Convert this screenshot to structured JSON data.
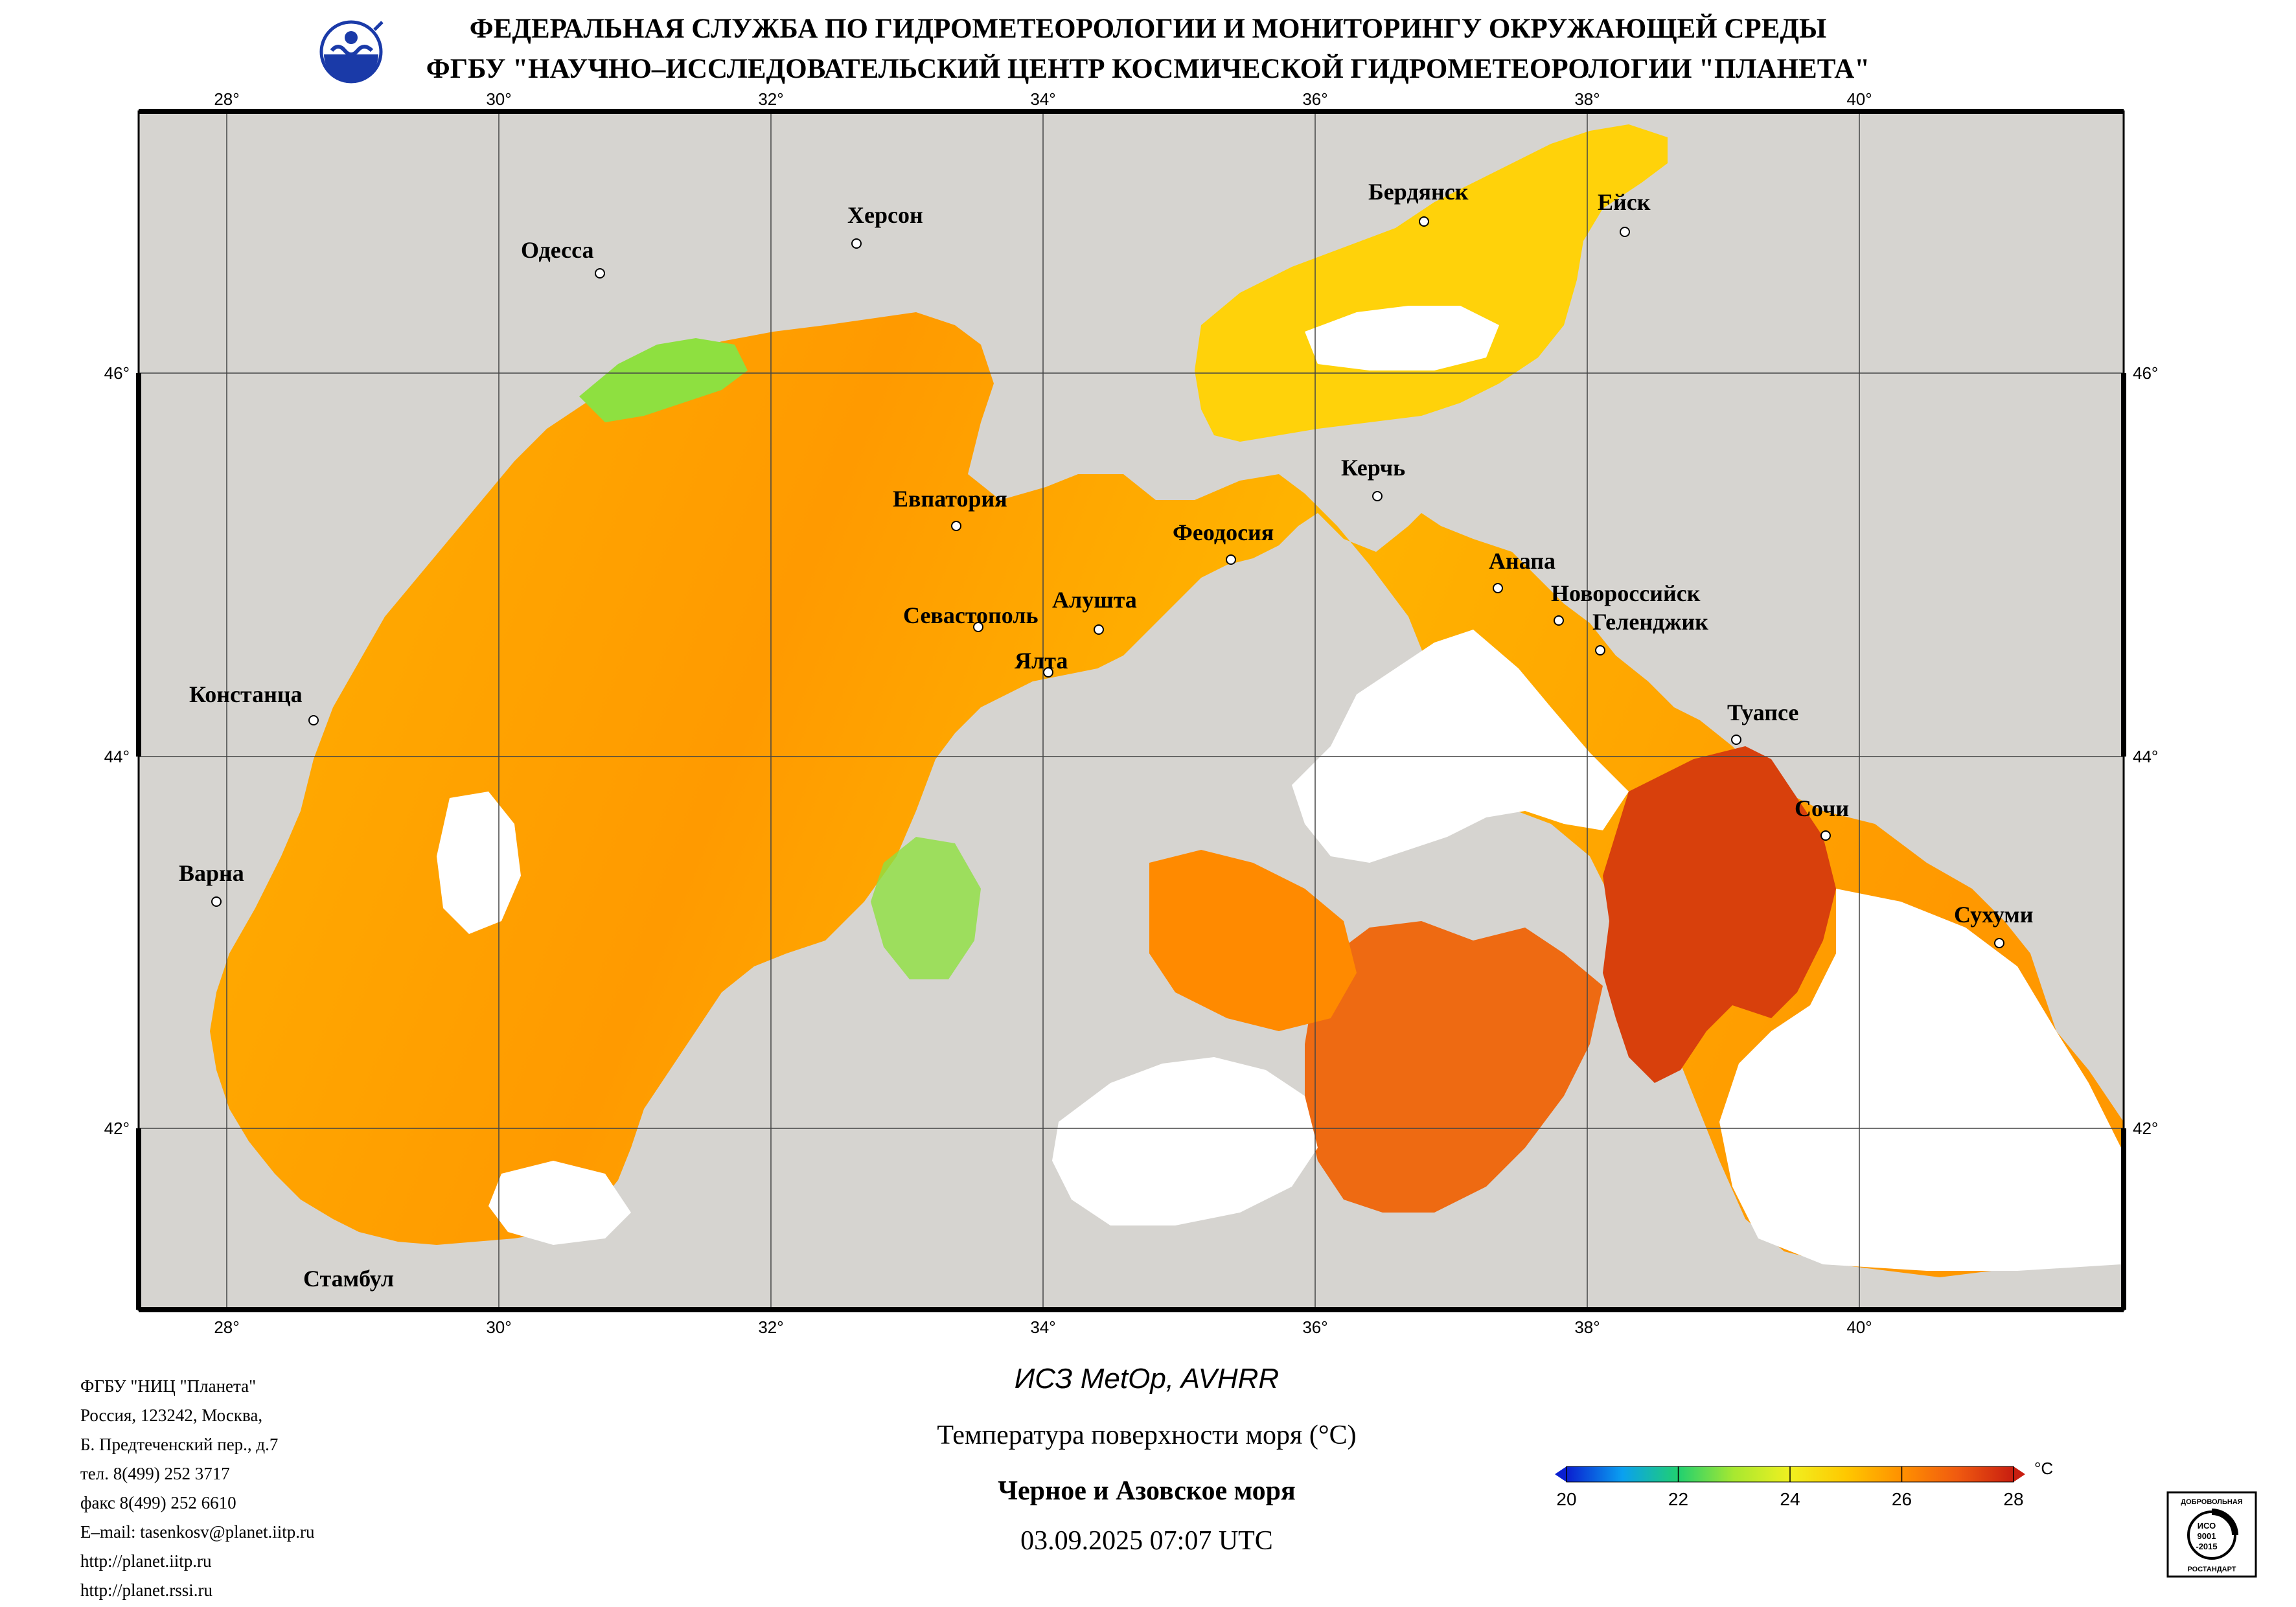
{
  "header": {
    "line1": "ФЕДЕРАЛЬНАЯ СЛУЖБА ПО ГИДРОМЕТЕОРОЛОГИИ И МОНИТОРИНГУ ОКРУЖАЮЩЕЙ СРЕДЫ",
    "line2": "ФГБУ \"НАУЧНО–ИССЛЕДОВАТЕЛЬСКИЙ ЦЕНТР КОСМИЧЕСКОЙ ГИДРОМЕТЕОРОЛОГИИ \"ПЛАНЕТА\""
  },
  "map": {
    "lon_ticks": [
      "28°",
      "30°",
      "32°",
      "34°",
      "36°",
      "38°",
      "40°"
    ],
    "lat_ticks": [
      "46°",
      "44°",
      "42°"
    ],
    "cities": [
      "Одесса",
      "Херсон",
      "Бердянск",
      "Ейск",
      "Евпатория",
      "Керчь",
      "Феодосия",
      "Анапа",
      "Новороссийск",
      "Геленджик",
      "Севастополь",
      "Алушта",
      "Ялта",
      "Констанца",
      "Туапсе",
      "Сочи",
      "Варна",
      "Сухуми",
      "Стамбул"
    ]
  },
  "product": {
    "satellite": "ИСЗ MetOp, AVHRR",
    "parameter": "Температура поверхности моря (°C)",
    "region": "Черное и Азовское моря",
    "datetime": "03.09.2025 07:07 UTC"
  },
  "colorbar": {
    "unit": "°C",
    "labels": [
      "20",
      "22",
      "24",
      "26",
      "28"
    ],
    "min": 20,
    "max": 28,
    "colors": [
      "#0a1fd0",
      "#0aa0f0",
      "#20d070",
      "#a8e830",
      "#f0f020",
      "#ffc800",
      "#ff9000",
      "#f05a10",
      "#c81e10"
    ]
  },
  "contacts": [
    "ФГБУ \"НИЦ \"Планета\"",
    "Россия, 123242, Москва,",
    "Б. Предтеченский пер., д.7",
    "тел. 8(499) 252 3717",
    "факс 8(499) 252 6610",
    "E–mail: tasenkosv@planet.iitp.ru",
    "http://planet.iitp.ru",
    "http://planet.rssi.ru"
  ],
  "cert": {
    "top": "ДОБРОВОЛЬНАЯ",
    "mid1": "ИСО",
    "mid2": "9001",
    "mid3": "-2015",
    "bottom": "РОСТАНДАРТ"
  }
}
